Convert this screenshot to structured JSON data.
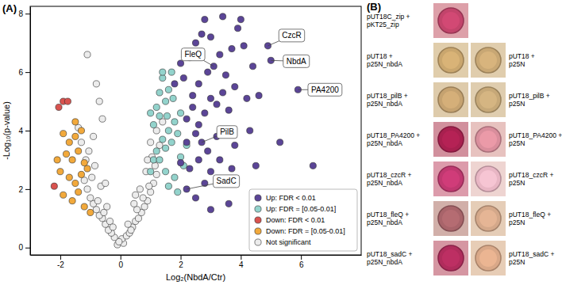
{
  "chart_data": {
    "type": "scatter",
    "title": "(A)",
    "x_label": "Log₂(NbdA/Ctr)",
    "y_label": "-Log₁₀(p-value)",
    "xlim": [
      -3,
      8
    ],
    "ylim": [
      -0.25,
      8.25
    ],
    "xticks": [
      -2,
      0,
      2,
      4,
      6
    ],
    "yticks": [
      0,
      2,
      4,
      6,
      8
    ],
    "grid": false,
    "legend": "lower right",
    "marker": "circle",
    "series": [
      {
        "name": "Up: FDR < 0.01",
        "color": "#5b4597",
        "x": [
          1.8,
          2.0,
          2.1,
          2.3,
          2.5,
          2.7,
          2.8,
          3.0,
          2.4,
          2.6,
          2.9,
          3.1,
          3.3,
          3.5,
          3.7,
          3.9,
          4.1,
          4.4,
          4.9,
          5.0,
          5.9,
          2.2,
          2.4,
          2.6,
          2.8,
          3.0,
          3.2,
          3.4,
          3.6,
          3.8,
          4.2,
          4.6,
          2.2,
          2.5,
          2.7,
          2.9,
          3.2,
          3.5,
          3.8,
          4.3,
          2.0,
          2.3,
          2.6,
          3.0,
          3.3,
          3.7,
          4.5,
          2.2,
          2.5,
          3.0,
          3.6,
          2.8,
          6.4,
          5.3,
          4.0,
          3.4
        ],
        "values": [
          5.6,
          6.3,
          5.8,
          6.5,
          7.0,
          7.3,
          7.8,
          7.2,
          5.2,
          5.6,
          6.0,
          6.2,
          6.6,
          5.9,
          6.8,
          7.5,
          6.9,
          6.2,
          6.9,
          6.4,
          5.4,
          4.4,
          4.8,
          4.2,
          4.6,
          5.1,
          4.9,
          5.3,
          4.7,
          5.5,
          5.1,
          5.2,
          3.6,
          3.9,
          3.6,
          3.3,
          3.8,
          4.0,
          3.5,
          4.0,
          2.9,
          2.7,
          3.0,
          2.6,
          3.0,
          2.7,
          2.8,
          2.0,
          1.7,
          1.3,
          1.5,
          2.2,
          2.8,
          3.6,
          7.8,
          7.9
        ]
      },
      {
        "name": "Up: FDR = [0.05-0.01]",
        "color": "#93d3cc",
        "x": [
          1.0,
          1.1,
          1.2,
          1.3,
          1.4,
          1.5,
          1.6,
          1.7,
          1.8,
          1.9,
          1.3,
          1.5,
          1.6,
          1.4,
          1.7,
          1.2,
          1.1,
          1.5,
          1.8,
          2.0,
          2.1,
          1.9,
          1.6,
          1.4,
          1.3,
          2.0,
          1.75,
          1.0,
          2.2,
          1.55
        ],
        "values": [
          2.6,
          3.0,
          3.3,
          3.0,
          3.7,
          3.4,
          4.0,
          3.6,
          4.3,
          3.9,
          4.5,
          5.0,
          5.4,
          5.8,
          6.0,
          4.8,
          4.2,
          2.6,
          2.4,
          3.1,
          2.8,
          1.9,
          2.1,
          6.0,
          5.3,
          4.6,
          5.1,
          4.6,
          3.5,
          4.5
        ]
      },
      {
        "name": "Down: FDR < 0.01",
        "color": "#d9534f",
        "x": [
          -2.05,
          -1.9,
          -1.75,
          -2.2
        ],
        "values": [
          4.8,
          5.0,
          5.0,
          2.1
        ]
      },
      {
        "name": "Down: FDR = [0.05-0.01]",
        "color": "#f2a93b",
        "x": [
          -1.9,
          -1.7,
          -1.5,
          -1.3,
          -1.8,
          -1.6,
          -1.4,
          -1.2,
          -2.0,
          -1.7,
          -1.5,
          -1.3,
          -1.9,
          -1.6,
          -1.4,
          -1.2,
          -1.1,
          -1.5,
          -2.1,
          -1.0
        ],
        "values": [
          3.9,
          3.6,
          3.8,
          4.0,
          3.2,
          3.0,
          3.3,
          2.9,
          2.6,
          2.4,
          2.2,
          2.5,
          1.8,
          1.6,
          1.9,
          1.4,
          2.7,
          4.3,
          3.0,
          1.2
        ]
      },
      {
        "name": "Not significant",
        "color": "#ececec",
        "x": [
          -0.1,
          0.1,
          0.05,
          -0.05,
          0.2,
          -0.2,
          0.3,
          -0.3,
          0.4,
          -0.4,
          0.5,
          -0.5,
          0.6,
          -0.6,
          0.7,
          -0.7,
          0.8,
          -0.8,
          0.9,
          -0.9,
          1.0,
          -1.0,
          1.1,
          -1.1,
          1.2,
          -1.2,
          0.35,
          -0.35,
          0.55,
          -0.55,
          0.75,
          -0.75,
          0.95,
          -0.95,
          1.15,
          -1.15,
          0.25,
          -0.25,
          0.45,
          -0.45,
          0.65,
          -0.65,
          0.85,
          -0.85,
          1.05,
          -1.05,
          1.3,
          -1.3,
          0.5,
          -0.5,
          0.9,
          -0.9,
          1.2,
          -1.1,
          -0.8,
          -0.7,
          1.4,
          -1.4,
          1.0,
          -0.6
        ],
        "values": [
          0.1,
          0.15,
          0.3,
          0.2,
          0.4,
          0.35,
          0.5,
          0.5,
          0.7,
          0.6,
          0.9,
          0.8,
          1.0,
          1.0,
          1.2,
          1.1,
          1.4,
          1.3,
          1.6,
          1.5,
          1.9,
          1.7,
          2.2,
          2.0,
          2.5,
          2.3,
          0.6,
          0.9,
          1.3,
          1.2,
          1.7,
          1.6,
          2.1,
          2.4,
          2.8,
          3.0,
          0.8,
          0.7,
          1.5,
          1.4,
          2.0,
          2.1,
          2.6,
          2.8,
          3.1,
          3.3,
          3.5,
          3.6,
          1.8,
          2.2,
          3.0,
          3.8,
          4.0,
          6.6,
          5.6,
          5.0,
          4.3,
          4.1,
          3.6,
          4.4
        ]
      }
    ],
    "annotations": [
      {
        "text": "CzcR",
        "x": 4.9,
        "y": 6.9
      },
      {
        "text": "NbdA",
        "x": 5.0,
        "y": 6.4
      },
      {
        "text": "PA4200",
        "x": 5.9,
        "y": 5.4
      },
      {
        "text": "FleQ",
        "x": 3.1,
        "y": 6.2
      },
      {
        "text": "PilB",
        "x": 2.7,
        "y": 3.6
      },
      {
        "text": "SadC",
        "x": 2.2,
        "y": 2.0
      }
    ]
  },
  "panel_b": {
    "label": "(B)",
    "top": {
      "label": [
        "pUT18C_zip +",
        "pKT25_zip"
      ],
      "color": "#c2446b"
    },
    "rows": [
      {
        "left": {
          "label": [
            "pUT18 +",
            "p25N_nbdA"
          ],
          "color": "#c9a66e"
        },
        "right": {
          "label": [
            "pUT18 +",
            "p25N"
          ],
          "color": "#c8a774"
        }
      },
      {
        "left": {
          "label": [
            "pUT18_pilB +",
            "p25N_nbdA"
          ],
          "color": "#c5a270"
        },
        "right": {
          "label": [
            "pUT18_pilB +",
            "p25N"
          ],
          "color": "#c6a878"
        }
      },
      {
        "left": {
          "label": [
            "pUT18_PA4200 +",
            "p25N_nbdA"
          ],
          "color": "#a8204f"
        },
        "right": {
          "label": [
            "pUT18_PA4200 +",
            "p25N"
          ],
          "color": "#d98e9c"
        }
      },
      {
        "left": {
          "label": [
            "pUT18_czcR +",
            "p25N_nbdA"
          ],
          "color": "#c03870"
        },
        "right": {
          "label": [
            "pUT18_czcR +",
            "p25N"
          ],
          "color": "#e8b6c4"
        }
      },
      {
        "left": {
          "label": [
            "pUT18_fleQ +",
            "p25N_nbdA"
          ],
          "color": "#a8646a"
        },
        "right": {
          "label": [
            "pUT18_fleQ +",
            "p25N"
          ],
          "color": "#d4a88a"
        }
      },
      {
        "left": {
          "label": [
            "pUT18_sadC +",
            "p25N_nbdA"
          ],
          "color": "#b02c5c"
        },
        "right": {
          "label": [
            "pUT18_sadC +",
            "p25N"
          ],
          "color": "#d9a888"
        }
      }
    ]
  }
}
